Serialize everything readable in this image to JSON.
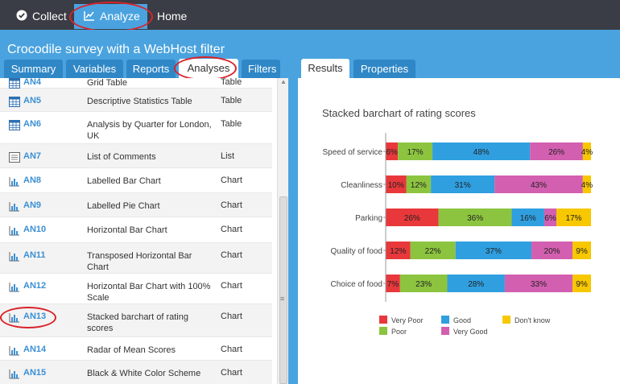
{
  "topbar": {
    "collect_label": "Collect",
    "analyze_label": "Analyze",
    "home_label": "Home"
  },
  "project_title": "Crocodile survey with a WebHost filter",
  "left_tabs": [
    "Summary",
    "Variables",
    "Reports",
    "Analyses",
    "Filters"
  ],
  "right_tabs": [
    "Results",
    "Properties"
  ],
  "analyses": [
    {
      "id": "AN4",
      "name": "Grid Table",
      "type": "Table",
      "icon": "table-icon"
    },
    {
      "id": "AN5",
      "name": "Descriptive Statistics Table",
      "type": "Table",
      "icon": "table-icon"
    },
    {
      "id": "AN6",
      "name": "Analysis by Quarter for London, UK",
      "type": "Table",
      "icon": "table-icon"
    },
    {
      "id": "AN7",
      "name": "List of Comments",
      "type": "List",
      "icon": "list-icon"
    },
    {
      "id": "AN8",
      "name": "Labelled Bar Chart",
      "type": "Chart",
      "icon": "chart-icon"
    },
    {
      "id": "AN9",
      "name": "Labelled Pie Chart",
      "type": "Chart",
      "icon": "chart-icon"
    },
    {
      "id": "AN10",
      "name": "Horizontal Bar Chart",
      "type": "Chart",
      "icon": "chart-icon"
    },
    {
      "id": "AN11",
      "name": "Transposed Horizontal Bar Chart",
      "type": "Chart",
      "icon": "chart-icon"
    },
    {
      "id": "AN12",
      "name": "Horizontal Bar Chart with 100% Scale",
      "type": "Chart",
      "icon": "chart-icon"
    },
    {
      "id": "AN13",
      "name": "Stacked barchart of rating scores",
      "type": "Chart",
      "icon": "chart-icon"
    },
    {
      "id": "AN14",
      "name": "Radar of Mean Scores",
      "type": "Chart",
      "icon": "chart-icon"
    },
    {
      "id": "AN15",
      "name": "Black & White Color Scheme",
      "type": "Chart",
      "icon": "chart-icon"
    }
  ],
  "colors": {
    "accent": "#4aa3df",
    "topbar": "#3a3d45",
    "highlight_ring": "#d9232a"
  },
  "chart_data": {
    "type": "bar",
    "orientation": "horizontal",
    "stacked": true,
    "title": "Stacked barchart of rating scores",
    "categories": [
      "Speed of service",
      "Cleanliness",
      "Parking",
      "Quality of food",
      "Choice of food"
    ],
    "series": [
      {
        "name": "Very Poor",
        "color": "#e8383b",
        "values": [
          6,
          10,
          26,
          12,
          7
        ]
      },
      {
        "name": "Poor",
        "color": "#8cc43f",
        "values": [
          17,
          12,
          36,
          22,
          23
        ]
      },
      {
        "name": "Good",
        "color": "#2f9fe0",
        "values": [
          48,
          31,
          16,
          37,
          28
        ]
      },
      {
        "name": "Very Good",
        "color": "#d35fb0",
        "values": [
          26,
          43,
          6,
          20,
          33
        ]
      },
      {
        "name": "Don't know",
        "color": "#f7c700",
        "values": [
          4,
          4,
          17,
          9,
          9
        ]
      }
    ],
    "value_suffix": "%",
    "xlim": [
      0,
      100
    ],
    "legend_position": "bottom",
    "grid": false
  }
}
